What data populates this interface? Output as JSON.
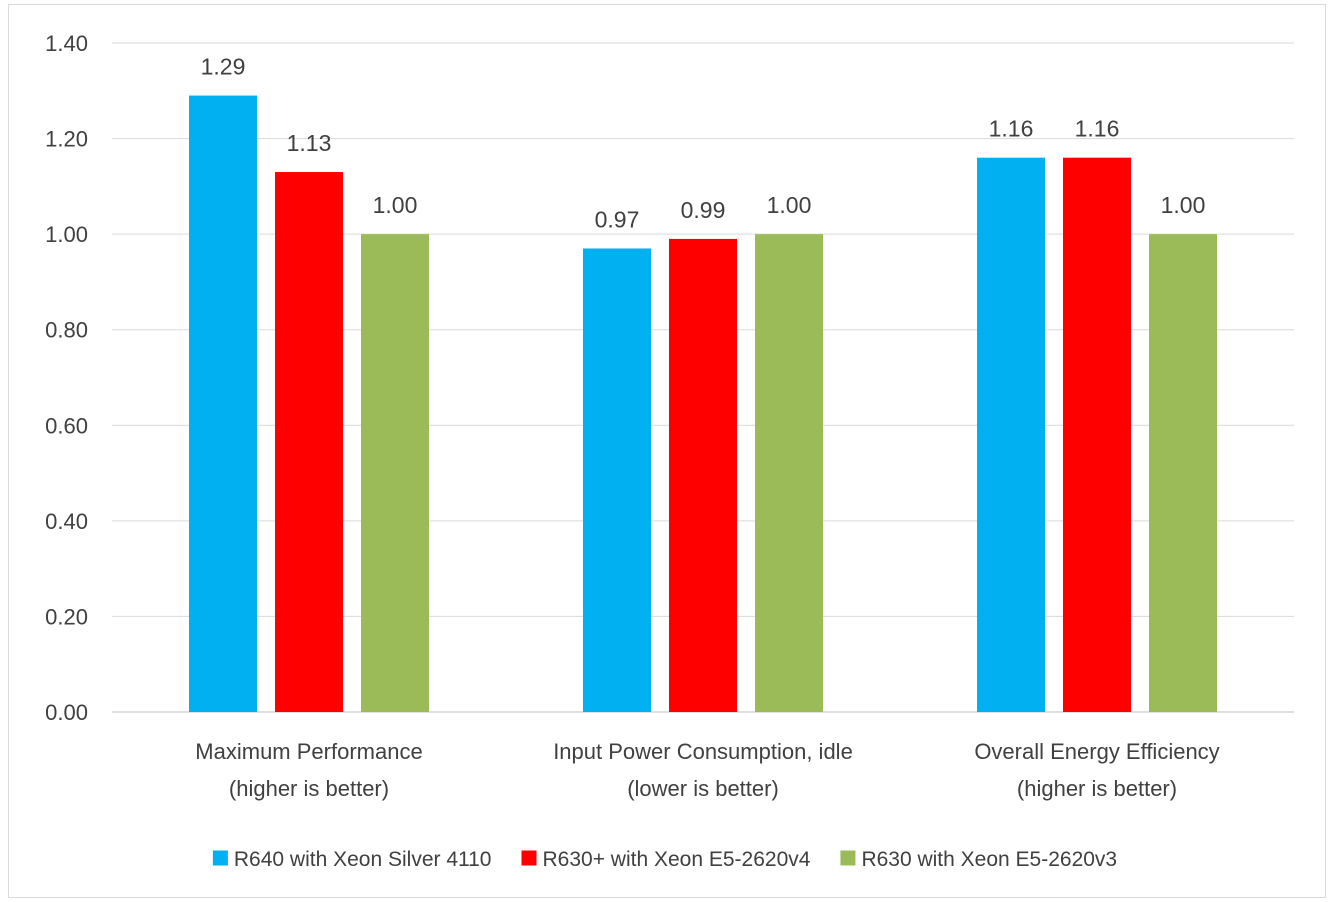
{
  "chart_data": {
    "type": "bar",
    "title": "",
    "xlabel": "",
    "ylabel": "",
    "ylim": [
      0,
      1.4
    ],
    "yticks": [
      "0.00",
      "0.20",
      "0.40",
      "0.60",
      "0.80",
      "1.00",
      "1.20",
      "1.40"
    ],
    "grid": true,
    "legend_position": "bottom",
    "categories": [
      [
        "Maximum Performance",
        "(higher is better)"
      ],
      [
        "Input Power Consumption, idle",
        "(lower is better)"
      ],
      [
        "Overall Energy Efficiency",
        "(higher is better)"
      ]
    ],
    "series": [
      {
        "name": "R640 with Xeon Silver 4110",
        "color": "#00b0f0",
        "values": [
          1.29,
          0.97,
          1.16
        ],
        "labels": [
          "1.29",
          "0.97",
          "1.16"
        ]
      },
      {
        "name": "R630+ with Xeon E5-2620v4",
        "color": "#ff0000",
        "values": [
          1.13,
          0.99,
          1.16
        ],
        "labels": [
          "1.13",
          "0.99",
          "1.16"
        ]
      },
      {
        "name": "R630 with Xeon E5-2620v3",
        "color": "#9bbb59",
        "values": [
          1.0,
          1.0,
          1.0
        ],
        "labels": [
          "1.00",
          "1.00",
          "1.00"
        ]
      }
    ]
  }
}
